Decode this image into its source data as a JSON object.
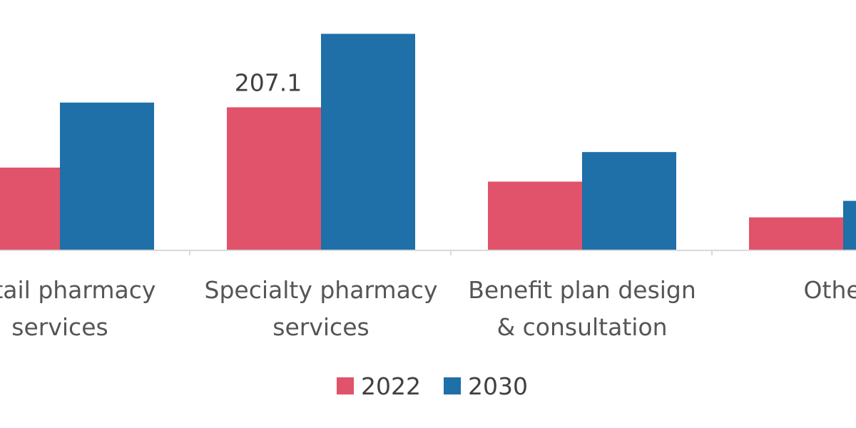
{
  "chart_data": {
    "type": "bar",
    "categories": [
      [
        "Retail pharmacy",
        "services"
      ],
      [
        "Specialty pharmacy",
        "services"
      ],
      [
        "Benefit plan design",
        "& consultation"
      ],
      [
        "Others",
        ""
      ]
    ],
    "series": [
      {
        "name": "2022",
        "color": "#e0536a",
        "values": [
          119.4,
          207.1,
          99.0,
          47.0
        ]
      },
      {
        "name": "2030",
        "color": "#1f6fa8",
        "values": [
          214.0,
          314.0,
          142.0,
          71.0
        ]
      }
    ],
    "data_labels": [
      {
        "series": 0,
        "category": 1,
        "text": "207.1"
      }
    ],
    "ylim": [
      0,
      330
    ],
    "grid": false,
    "legend": {
      "position": "bottom-center",
      "entries": [
        "2022",
        "2030"
      ]
    },
    "title": "",
    "xlabel": "",
    "ylabel": ""
  }
}
